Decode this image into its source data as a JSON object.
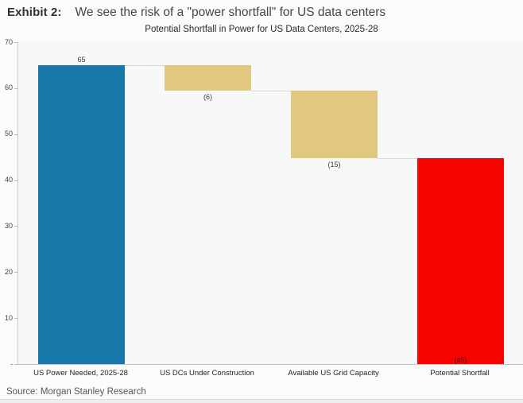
{
  "header": {
    "exhibit_label": "Exhibit 2:",
    "headline": "We see the risk of a \"power shortfall\" for US data centers"
  },
  "chart_data": {
    "type": "bar",
    "subtype": "waterfall",
    "title": "Potential Shortfall in Power for US Data Centers, 2025-28",
    "categories": [
      "US Power Needed, 2025-28",
      "US DCs Under Construction",
      "Available US Grid Capacity",
      "Potential Shortfall"
    ],
    "bars": [
      {
        "category": "US Power Needed, 2025-28",
        "label": "65",
        "start": 0,
        "end": 65,
        "color": "#1878aa",
        "label_position": "above",
        "label_color": "#3a3a3a"
      },
      {
        "category": "US DCs Under Construction",
        "label": "(6)",
        "start": 65,
        "end": 59.5,
        "color": "#e2c77e",
        "label_position": "below",
        "label_color": "#3a3a3a"
      },
      {
        "category": "Available US Grid Capacity",
        "label": "(15)",
        "start": 59.5,
        "end": 44.7,
        "color": "#e2c77e",
        "label_position": "below",
        "label_color": "#3a3a3a"
      },
      {
        "category": "Potential Shortfall",
        "label": "(45)",
        "start": 44.7,
        "end": 0,
        "color": "#f50400",
        "label_position": "inside-bottom",
        "label_color": "#4d1717"
      }
    ],
    "ylim": [
      0,
      70
    ],
    "yticks": [
      {
        "text": "70",
        "value": 70
      },
      {
        "text": "60",
        "value": 60
      },
      {
        "text": "50",
        "value": 50
      },
      {
        "text": "40",
        "value": 40
      },
      {
        "text": "30",
        "value": 30
      },
      {
        "text": "20",
        "value": 20
      },
      {
        "text": "10",
        "value": 10
      },
      {
        "text": "-",
        "value": 0
      }
    ],
    "grid": false,
    "legend": "none",
    "connectors": true,
    "accent_colors": {
      "blue": "#1878aa",
      "tan": "#e2c77e",
      "red": "#f50400"
    }
  },
  "source": {
    "text": "Source: Morgan Stanley Research"
  }
}
